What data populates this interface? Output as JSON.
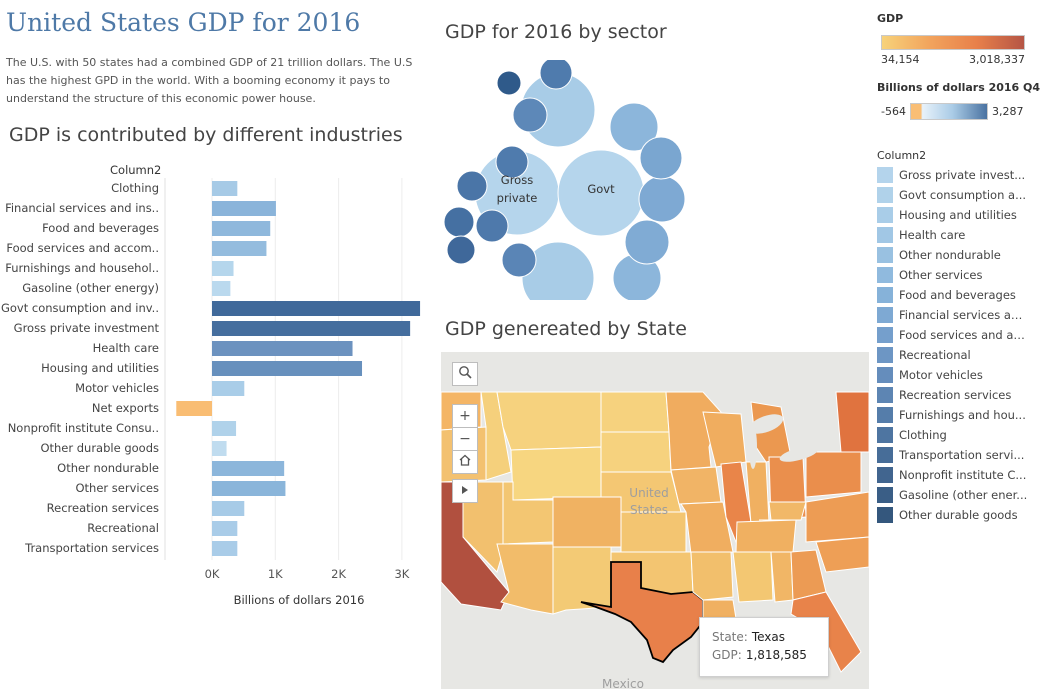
{
  "page": {
    "title": "United States GDP for 2016",
    "intro": "The U.S. with 50 states had a combined GDP of 21 trillion dollars. The U.S has the highest GPD in the world. With a booming economy it pays to understand the structure of this economic power house."
  },
  "bar_section": {
    "title": "GDP is contributed by different industries",
    "row_header": "Column2",
    "xlabel": "Billions of dollars 2016",
    "tick_labels": [
      "0K",
      "1K",
      "2K",
      "3K"
    ]
  },
  "bubble_section": {
    "title": "GDP for 2016 by sector",
    "labels": {
      "gross": [
        "Gross",
        "private"
      ],
      "govt": "Govt"
    }
  },
  "map_section": {
    "title": "GDP genereated by State",
    "map_labels": {
      "country": [
        "United",
        "States"
      ],
      "mexico": "Mexico"
    },
    "tooltip": {
      "state_label": "State:",
      "state_value": "Texas",
      "gdp_label": "GDP:",
      "gdp_value": "1,818,585"
    }
  },
  "legend": {
    "gdp_title": "GDP",
    "gdp_min": "34,154",
    "gdp_max": "3,018,337",
    "gdp_colors": [
      "#f7d27a",
      "#f2a45d",
      "#e8804a",
      "#b55545"
    ],
    "billions_title": "Billions of dollars 2016 Q4",
    "billions_min": "-564",
    "billions_max": "3,287",
    "billions_colors": [
      "#f9be75",
      "#e8f2fa",
      "#a9cbe6",
      "#4a72a1"
    ],
    "column_title": "Column2",
    "items": [
      {
        "label": "Gross private invest...",
        "color": "#b4d4ec"
      },
      {
        "label": "Govt consumption a...",
        "color": "#b0d2ea"
      },
      {
        "label": "Housing and utilities",
        "color": "#a9cde8"
      },
      {
        "label": "Health care",
        "color": "#a1c7e5"
      },
      {
        "label": "Other nondurable",
        "color": "#99c1e1"
      },
      {
        "label": "Other services",
        "color": "#90bade"
      },
      {
        "label": "Food and beverages",
        "color": "#86b2d9"
      },
      {
        "label": "Financial services an...",
        "color": "#7ea9d3"
      },
      {
        "label": "Food services and ac...",
        "color": "#759fcc"
      },
      {
        "label": "Recreational",
        "color": "#6d96c4"
      },
      {
        "label": "Motor vehicles",
        "color": "#658dbc"
      },
      {
        "label": "Recreation services",
        "color": "#5d85b3"
      },
      {
        "label": "Furnishings and hou...",
        "color": "#557daa"
      },
      {
        "label": "Clothing",
        "color": "#4e75a1"
      },
      {
        "label": "Transportation servi...",
        "color": "#476d98"
      },
      {
        "label": "Nonprofit institute C...",
        "color": "#41658f"
      },
      {
        "label": "Gasoline (other ener...",
        "color": "#3a5e86"
      },
      {
        "label": "Other durable goods",
        "color": "#34577d"
      }
    ]
  },
  "chart_data": [
    {
      "type": "bar",
      "orientation": "horizontal",
      "title": "GDP is contributed by different industries",
      "xlabel": "Billions of dollars 2016",
      "ylabel": "Column2",
      "xlim": [
        -564,
        3400
      ],
      "categories": [
        "Clothing",
        "Financial services and ins..",
        "Food and beverages",
        "Food services and accom..",
        "Furnishings and househol..",
        "Gasoline (other energy)",
        "Govt consumption and inv..",
        "Gross private investment",
        "Health care",
        "Housing and utilities",
        "Motor vehicles",
        "Net exports",
        "Nonprofit institute Consu..",
        "Other durable goods",
        "Other nondurable",
        "Other services",
        "Recreation services",
        "Recreational",
        "Transportation services"
      ],
      "values": [
        400,
        1010,
        920,
        860,
        340,
        290,
        3287,
        3130,
        2220,
        2370,
        510,
        -564,
        380,
        230,
        1140,
        1160,
        510,
        400,
        400
      ],
      "colors": [
        "#a6cae6",
        "#8ab4da",
        "#8fb8dc",
        "#94bcde",
        "#b5d6ec",
        "#bad9ee",
        "#40699a",
        "#456e9e",
        "#6c92bf",
        "#6790bd",
        "#a9cde8",
        "#f9bd73",
        "#b0d2ea",
        "#c0dcef",
        "#8cb6db",
        "#8ab5da",
        "#a7cbe7",
        "#a9cce8",
        "#a9cce8"
      ]
    },
    {
      "type": "bubble",
      "title": "GDP for 2016 by sector",
      "bubbles": [
        {
          "r": 42,
          "v": 3130,
          "label": "gross",
          "color": "#b5d5ec"
        },
        {
          "r": 43,
          "v": 3287,
          "label": "govt",
          "color": "#b5d5ec"
        },
        {
          "r": 37,
          "v": 2370,
          "color": "#a8cce7"
        },
        {
          "r": 36,
          "v": 2220,
          "color": "#a8cce7"
        },
        {
          "r": 24,
          "v": 1160,
          "color": "#8cb6db"
        },
        {
          "r": 24,
          "v": 1140,
          "color": "#8cb6db"
        },
        {
          "r": 23,
          "v": 1010,
          "color": "#7ea9d3"
        },
        {
          "r": 22,
          "v": 920,
          "color": "#80abd4"
        },
        {
          "r": 21,
          "v": 860,
          "color": "#7aa6d0"
        },
        {
          "r": 17,
          "v": 510,
          "color": "#5d88b8"
        },
        {
          "r": 17,
          "v": 510,
          "color": "#5a85b6"
        },
        {
          "r": 16,
          "v": 400,
          "color": "#4f7bad"
        },
        {
          "r": 16,
          "v": 400,
          "color": "#4f7bad"
        },
        {
          "r": 16,
          "v": 400,
          "color": "#4e79ab"
        },
        {
          "r": 15,
          "v": 380,
          "color": "#4a75a7"
        },
        {
          "r": 15,
          "v": 340,
          "color": "#4570a2"
        },
        {
          "r": 14,
          "v": 290,
          "color": "#3f689a"
        },
        {
          "r": 12,
          "v": 230,
          "color": "#2f5a8a"
        }
      ]
    },
    {
      "type": "map",
      "title": "GDP genereated by State",
      "highlight": {
        "state": "Texas",
        "gdp": 1818585
      }
    }
  ]
}
